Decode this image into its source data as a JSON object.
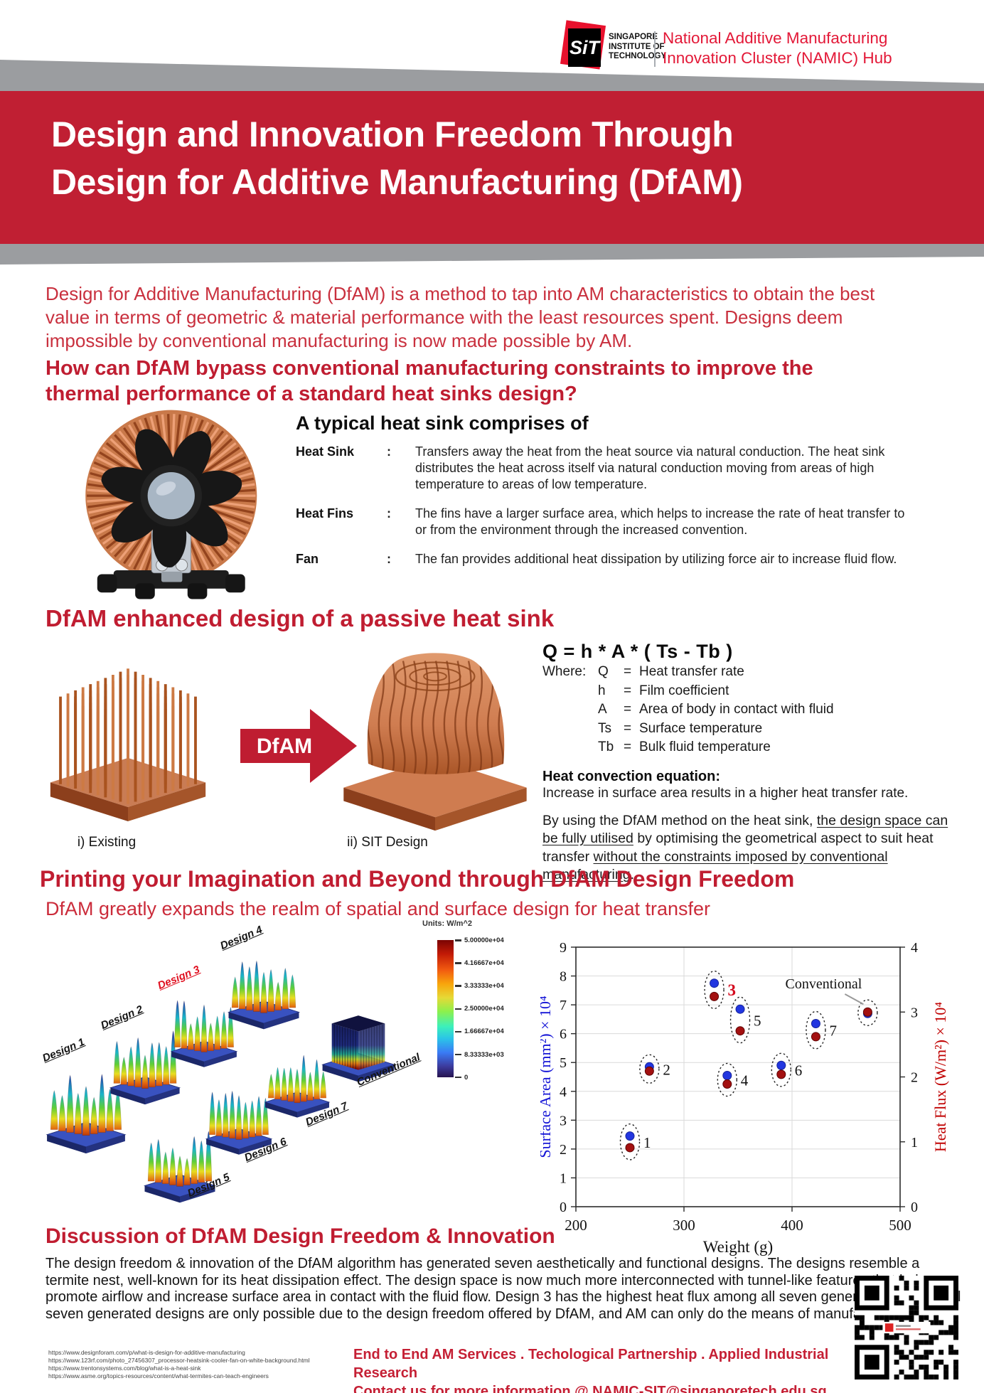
{
  "header": {
    "sit": {
      "abbr": "SiT",
      "lines": [
        "SINGAPORE",
        "INSTITUTE OF",
        "TECHNOLOGY"
      ]
    },
    "namic": [
      "National Additive Manufacturing",
      "Innovation Cluster (NAMIC) Hub"
    ]
  },
  "banner": {
    "lines": [
      "Design and Innovation Freedom Through",
      "Design for Additive Manufacturing (DfAM)"
    ]
  },
  "intro": {
    "paragraph": "Design for Additive Manufacturing (DfAM) is a method to tap into AM characteristics to obtain the best value in terms of geometric & material performance with the least resources spent. Designs deem impossible by conventional manufacturing is now made possible by AM.",
    "question": "How can DfAM bypass conventional manufacturing constraints to improve the thermal performance of a standard heat sinks design?"
  },
  "heatsink_section": {
    "heading": "A typical heat sink comprises of",
    "items": [
      {
        "term": "Heat Sink",
        "sep": ":",
        "desc": "Transfers away the heat from the heat source via natural conduction. The heat sink distributes the heat across itself via natural conduction moving from areas of high temperature to areas of low temperature."
      },
      {
        "term": "Heat Fins",
        "sep": ":",
        "desc": "The fins have a larger surface area, which helps to increase the rate of heat transfer to or from the environment through the increased convention."
      },
      {
        "term": "Fan",
        "sep": ":",
        "desc": "The fan provides additional heat dissipation by utilizing force air to increase fluid flow."
      }
    ]
  },
  "dfam_section": {
    "heading": "DfAM enhanced design of a passive heat sink",
    "arrow_label": "DfAM",
    "existing_label": "i) Existing",
    "sit_label": "ii) SIT Design",
    "equation": "Q = h * A * ( Ts - Tb )",
    "where_label": "Where:",
    "definitions": [
      {
        "sym": "Q",
        "eq": "=",
        "text": "Heat transfer rate"
      },
      {
        "sym": "h",
        "eq": "=",
        "text": "Film coefficient"
      },
      {
        "sym": "A",
        "eq": "=",
        "text": "Area of body in contact with fluid"
      },
      {
        "sym": "Ts",
        "eq": "=",
        "text": "Surface temperature"
      },
      {
        "sym": "Tb",
        "eq": "=",
        "text": "Bulk fluid temperature"
      }
    ],
    "convection_heading": "Heat convection equation:",
    "convection_text": "Increase in surface area results in a higher heat transfer rate.",
    "body_segments": [
      {
        "text": "By using the DfAM method on the heat sink, ",
        "u": false
      },
      {
        "text": "the design space can be fully utilised",
        "u": true
      },
      {
        "text": " by optimising the geometrical aspect to suit heat transfer ",
        "u": false
      },
      {
        "text": "without the constraints imposed by conventional manufacturing",
        "u": true
      },
      {
        "text": ".",
        "u": false
      }
    ]
  },
  "printing_section": {
    "heading": "Printing your Imagination and Beyond through DfAM Design Freedom",
    "subheading": "DfAM greatly expands the realm of spatial and surface design for heat transfer",
    "designs": [
      {
        "label": "Design 1",
        "highlight": false
      },
      {
        "label": "Design 2",
        "highlight": false
      },
      {
        "label": "Design 3",
        "highlight": true
      },
      {
        "label": "Design 4",
        "highlight": false
      },
      {
        "label": "Design 5",
        "highlight": false
      },
      {
        "label": "Design 6",
        "highlight": false
      },
      {
        "label": "Design 7",
        "highlight": false
      },
      {
        "label": "Conventional",
        "highlight": false
      }
    ],
    "colorbar": {
      "units": "Units: W/m^2",
      "ticks": [
        "5.00000e+04",
        "4.16667e+04",
        "3.33333e+04",
        "2.50000e+04",
        "1.66667e+04",
        "8.33333e+03",
        "0"
      ]
    }
  },
  "chart_data": {
    "type": "scatter",
    "xlabel": "Weight (g)",
    "ylabel_left": "Surface Area (mm²) × 10⁴",
    "ylabel_right": "Heat Flux (W/m²) × 10⁴",
    "xlim": [
      200,
      500
    ],
    "xticks": [
      200,
      300,
      400,
      500
    ],
    "ylim_left": [
      0,
      9
    ],
    "yticks_left": [
      0,
      1,
      2,
      3,
      4,
      5,
      6,
      7,
      8,
      9
    ],
    "ylim_right": [
      0,
      4
    ],
    "yticks_right": [
      0,
      1,
      2,
      3,
      4
    ],
    "grid": true,
    "series": [
      {
        "name": "Surface Area",
        "color": "#2236e0",
        "axis": "left"
      },
      {
        "name": "Heat Flux",
        "color": "#a31010",
        "axis": "right"
      }
    ],
    "annotation": {
      "text": "Conventional"
    },
    "points": [
      {
        "label": "1",
        "weight": 250,
        "surface_area": 2.45,
        "heat_flux": 0.91,
        "label_red": false
      },
      {
        "label": "2",
        "weight": 268,
        "surface_area": 4.85,
        "heat_flux": 2.09,
        "label_red": false
      },
      {
        "label": "3",
        "weight": 328,
        "surface_area": 7.75,
        "heat_flux": 3.24,
        "label_red": true
      },
      {
        "label": "4",
        "weight": 340,
        "surface_area": 4.55,
        "heat_flux": 1.89,
        "label_red": false
      },
      {
        "label": "5",
        "weight": 352,
        "surface_area": 6.85,
        "heat_flux": 2.71,
        "label_red": false
      },
      {
        "label": "6",
        "weight": 390,
        "surface_area": 4.9,
        "heat_flux": 2.04,
        "label_red": false
      },
      {
        "label": "7",
        "weight": 422,
        "surface_area": 6.35,
        "heat_flux": 2.62,
        "label_red": false
      },
      {
        "label": "Conventional",
        "weight": 470,
        "surface_area": 6.7,
        "heat_flux": 3.0,
        "label_red": false,
        "annotation": true
      }
    ]
  },
  "discussion": {
    "heading": "Discussion of DfAM Design Freedom & Innovation",
    "body": "The design freedom & innovation of the DfAM algorithm has generated seven aesthetically and functional designs. The designs resemble a termite nest, well-known for its heat dissipation effect. The design space is now much more interconnected with tunnel-like features that help promote airflow and increase surface area in contact with the fluid flow. Design 3 has the highest heat flux among all seven generated designs. All seven generated designs are only possible due to the design freedom offered by DfAM, and AM can only do the means of manufacturing them."
  },
  "references": [
    "https://www.designforam.com/p/what-is-design-for-additive-manufacturing",
    "https://www.123rf.com/photo_27456307_processor-heatsink-cooler-fan-on-white-background.html",
    "https://www.trentonsystems.com/blog/what-is-a-heat-sink",
    "https://www.asme.org/topics-resources/content/what-termites-can-teach-engineers"
  ],
  "footer": {
    "line1": "End to End AM Services . Techological Partnership . Applied Industrial Research",
    "line2": "Contact us for more information @ NAMIC-SIT@singaporetech.edu.sg"
  },
  "colors": {
    "banner_red": "#c01f33",
    "text_red": "#bf1d31",
    "gray_band": "#9b9da0",
    "logo_red": "#e8112d",
    "scatter_blue": "#2236e0",
    "scatter_red": "#a31010",
    "axis_blue": "#1515d6",
    "axis_red": "#c00000"
  }
}
